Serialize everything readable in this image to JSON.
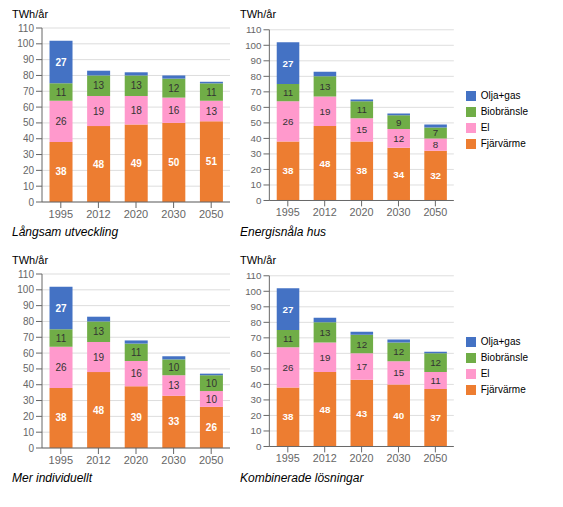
{
  "chart_data": [
    {
      "type": "bar",
      "stacked": true,
      "title": "Långsam utveckling",
      "ylabel": "TWh/år",
      "categories": [
        "1995",
        "2012",
        "2020",
        "2030",
        "2050"
      ],
      "ylim": [
        0,
        110
      ],
      "yticks": [
        0,
        10,
        20,
        30,
        40,
        50,
        60,
        70,
        80,
        90,
        100,
        110
      ],
      "grid": true,
      "data_labels": true,
      "series": [
        {
          "name": "Fjärvärme",
          "color": "#ED7D31",
          "values": [
            38,
            48,
            49,
            50,
            51
          ]
        },
        {
          "name": "El",
          "color": "#FF99CC",
          "values": [
            26,
            19,
            18,
            16,
            13
          ]
        },
        {
          "name": "Biobränsle",
          "color": "#70AD47",
          "values": [
            11,
            13,
            13,
            12,
            11
          ]
        },
        {
          "name": "Olja+gas",
          "color": "#4472C4",
          "values": [
            27,
            3,
            2,
            2,
            1
          ],
          "value_labels": [
            "27",
            null,
            null,
            null,
            null
          ]
        }
      ]
    },
    {
      "type": "bar",
      "stacked": true,
      "title": "Energisnåla hus",
      "ylabel": "TWh/år",
      "categories": [
        "1995",
        "2012",
        "2020",
        "2030",
        "2050"
      ],
      "ylim": [
        0,
        110
      ],
      "yticks": [
        0,
        10,
        20,
        30,
        40,
        50,
        60,
        70,
        80,
        90,
        100,
        110
      ],
      "grid": true,
      "data_labels": true,
      "legend": "right",
      "series": [
        {
          "name": "Fjärvärme",
          "color": "#ED7D31",
          "values": [
            38,
            48,
            38,
            34,
            32
          ]
        },
        {
          "name": "El",
          "color": "#FF99CC",
          "values": [
            26,
            19,
            15,
            12,
            8
          ]
        },
        {
          "name": "Biobränsle",
          "color": "#70AD47",
          "values": [
            11,
            13,
            11,
            9,
            7
          ]
        },
        {
          "name": "Olja+gas",
          "color": "#4472C4",
          "values": [
            27,
            3,
            1,
            1,
            2
          ],
          "value_labels": [
            "27",
            null,
            null,
            null,
            null
          ]
        }
      ]
    },
    {
      "type": "bar",
      "stacked": true,
      "title": "Mer individuellt",
      "ylabel": "TWh/år",
      "categories": [
        "1995",
        "2012",
        "2020",
        "2030",
        "2050"
      ],
      "ylim": [
        0,
        110
      ],
      "yticks": [
        0,
        10,
        20,
        30,
        40,
        50,
        60,
        70,
        80,
        90,
        100,
        110
      ],
      "grid": true,
      "data_labels": true,
      "series": [
        {
          "name": "Fjärvärme",
          "color": "#ED7D31",
          "values": [
            38,
            48,
            39,
            33,
            26
          ]
        },
        {
          "name": "El",
          "color": "#FF99CC",
          "values": [
            26,
            19,
            16,
            13,
            10
          ]
        },
        {
          "name": "Biobränsle",
          "color": "#70AD47",
          "values": [
            11,
            13,
            11,
            10,
            10
          ]
        },
        {
          "name": "Olja+gas",
          "color": "#4472C4",
          "values": [
            27,
            3,
            2,
            2,
            1
          ],
          "value_labels": [
            "27",
            null,
            null,
            null,
            null
          ]
        }
      ]
    },
    {
      "type": "bar",
      "stacked": true,
      "title": "Kombinerade lösningar",
      "ylabel": "TWh/år",
      "categories": [
        "1995",
        "2012",
        "2020",
        "2030",
        "2050"
      ],
      "ylim": [
        0,
        110
      ],
      "yticks": [
        0,
        10,
        20,
        30,
        40,
        50,
        60,
        70,
        80,
        90,
        100,
        110
      ],
      "grid": true,
      "data_labels": true,
      "legend": "right",
      "series": [
        {
          "name": "Fjärvärme",
          "color": "#ED7D31",
          "values": [
            38,
            48,
            43,
            40,
            37
          ]
        },
        {
          "name": "El",
          "color": "#FF99CC",
          "values": [
            26,
            19,
            17,
            15,
            11
          ]
        },
        {
          "name": "Biobränsle",
          "color": "#70AD47",
          "values": [
            11,
            13,
            12,
            12,
            12
          ]
        },
        {
          "name": "Olja+gas",
          "color": "#4472C4",
          "values": [
            27,
            3,
            2,
            2,
            1
          ],
          "value_labels": [
            "27",
            null,
            null,
            null,
            null
          ]
        }
      ]
    }
  ]
}
